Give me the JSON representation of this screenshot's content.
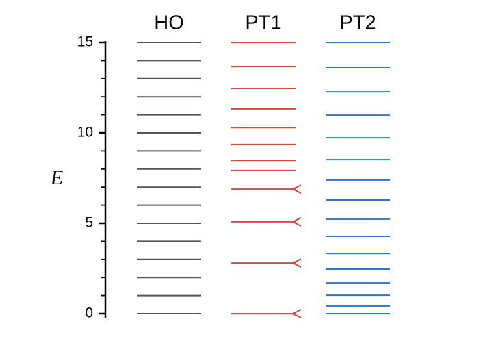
{
  "chart_data": {
    "type": "levels",
    "ylabel": "E",
    "ylim": [
      0,
      15
    ],
    "yticks": [
      0,
      5,
      10,
      15
    ],
    "yminorticks": [
      1,
      2,
      3,
      4,
      6,
      7,
      8,
      9,
      11,
      12,
      13,
      14
    ],
    "series": [
      {
        "name": "HO",
        "color": "#555555",
        "values": [
          0,
          1,
          2,
          3,
          4,
          5,
          6,
          7,
          8,
          9,
          10,
          11,
          12,
          13,
          14,
          15
        ]
      },
      {
        "name": "PT1",
        "color": "#e8413c",
        "values": [
          0,
          2.8,
          5.08,
          6.89,
          7.92,
          8.48,
          9.36,
          10.3,
          11.33,
          12.46,
          13.67,
          15
        ],
        "forked": [
          true,
          true,
          true,
          true,
          false,
          false,
          false,
          false,
          false,
          false,
          false,
          false
        ]
      },
      {
        "name": "PT2",
        "color": "#2a76d2",
        "values": [
          0,
          0.42,
          1.02,
          1.7,
          2.46,
          3.33,
          4.28,
          5.23,
          6.29,
          7.39,
          8.52,
          9.73,
          10.98,
          12.27,
          13.6,
          15
        ]
      }
    ]
  }
}
